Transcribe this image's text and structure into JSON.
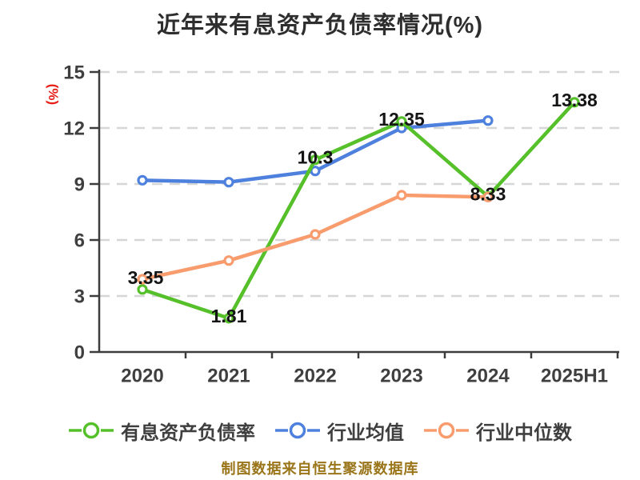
{
  "title": "近年来有息资产负债率情况(%)",
  "footer_note": "制图数据来自恒生聚源数据库",
  "colors": {
    "title": "#2e2e2e",
    "axis": "#3c3c3c",
    "grid": "#d6d6d6",
    "tick_label": "#3f3f3f",
    "data_label": "#151515",
    "legend_text": "#3f3f3f",
    "footer": "#9a751a",
    "y_axis_label_red": "#e71f19",
    "marker_fill": "#ffffff"
  },
  "chart_data": {
    "type": "line",
    "title": "近年来有息资产负债率情况(%)",
    "ylabel": "(%)",
    "xlabel": "",
    "categories": [
      "2020",
      "2021",
      "2022",
      "2023",
      "2024",
      "2025H1"
    ],
    "series": [
      {
        "name": "有息资产负债率",
        "color": "#56c02a",
        "values": [
          3.35,
          1.81,
          10.3,
          12.35,
          8.33,
          13.38
        ],
        "labels": [
          "3.35",
          "1.81",
          "10.3",
          "12.35",
          "8.33",
          "13.38"
        ]
      },
      {
        "name": "行业均值",
        "color": "#4e80dd",
        "values": [
          9.2,
          9.1,
          9.7,
          12.0,
          12.4
        ],
        "labels": null
      },
      {
        "name": "行业中位数",
        "color": "#f89c6e",
        "values": [
          3.9,
          4.9,
          6.3,
          8.4,
          8.3
        ],
        "labels": null
      }
    ],
    "ylim": [
      0,
      15
    ],
    "yticks": [
      0,
      3,
      6,
      9,
      12,
      15
    ],
    "grid": "horizontal dashed",
    "legend_position": "bottom"
  }
}
